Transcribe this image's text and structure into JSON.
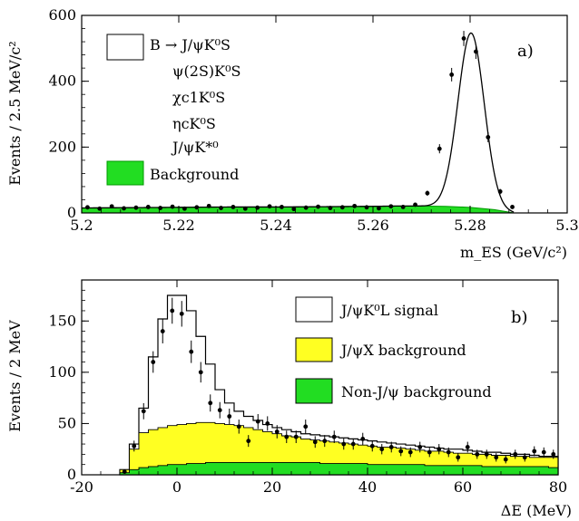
{
  "colors": {
    "background_fill": "#22dd22",
    "background_edge": "#009900",
    "jpsix_fill": "#ffff22",
    "signal_line": "#000000",
    "points": "#000000"
  },
  "chart_data": [
    {
      "type": "area",
      "panel_tag": "a)",
      "xlabel": "m_ES (GeV/c²)",
      "ylabel": "Events / 2.5 MeV/c²",
      "xlim": [
        5.2,
        5.3
      ],
      "ylim": [
        0,
        600
      ],
      "x_ticks": [
        "5.2",
        "5.22",
        "5.24",
        "5.26",
        "5.28",
        "5.3"
      ],
      "y_ticks": [
        "0",
        "200",
        "400",
        "600"
      ],
      "legend_position": "top-left",
      "legend": {
        "signal_lines": [
          "B → J/ψK⁰S",
          "ψ(2S)K⁰S",
          "χc1K⁰S",
          "ηcK⁰S",
          "J/ψK*⁰"
        ],
        "background": "Background"
      },
      "signal_peak": {
        "mean": 5.2802,
        "sigma": 0.0027,
        "height": 530
      },
      "background_curve": {
        "x": [
          5.2,
          5.21,
          5.22,
          5.23,
          5.24,
          5.25,
          5.26,
          5.265,
          5.27,
          5.275,
          5.28,
          5.285,
          5.289
        ],
        "y": [
          15,
          16,
          17,
          18,
          18,
          19,
          20,
          21,
          21,
          20,
          17,
          10,
          0
        ]
      },
      "data_points": {
        "x": [
          5.2012,
          5.2037,
          5.2062,
          5.2087,
          5.2112,
          5.2137,
          5.2162,
          5.2187,
          5.2212,
          5.2237,
          5.2262,
          5.2287,
          5.2312,
          5.2337,
          5.2362,
          5.2387,
          5.2412,
          5.2437,
          5.2462,
          5.2487,
          5.2512,
          5.2537,
          5.2562,
          5.2587,
          5.2612,
          5.2637,
          5.2662,
          5.2687,
          5.2712,
          5.2737,
          5.2762,
          5.2787,
          5.2812,
          5.2837,
          5.2862,
          5.2887
        ],
        "y": [
          17,
          13,
          20,
          14,
          16,
          18,
          15,
          19,
          13,
          17,
          21,
          15,
          18,
          13,
          16,
          20,
          18,
          12,
          16,
          19,
          15,
          17,
          21,
          17,
          14,
          20,
          18,
          25,
          60,
          195,
          420,
          530,
          490,
          230,
          65,
          18
        ]
      }
    },
    {
      "type": "area",
      "panel_tag": "b)",
      "xlabel": "ΔE (MeV)",
      "ylabel": "Events / 2 MeV",
      "xlim": [
        -20,
        80
      ],
      "ylim": [
        0,
        190
      ],
      "x_ticks": [
        "-20",
        "0",
        "20",
        "40",
        "60",
        "80"
      ],
      "y_ticks": [
        "0",
        "50",
        "100",
        "150"
      ],
      "legend_position": "top-right",
      "legend": {
        "signal": "J/ψK⁰L signal",
        "jpsix": "J/ψX background",
        "nonjpsi": "Non-J/ψ background"
      },
      "bins": {
        "start": -12,
        "width": 2
      },
      "total_hist": [
        5,
        30,
        65,
        115,
        152,
        175,
        175,
        160,
        135,
        108,
        83,
        70,
        62,
        57,
        53,
        49,
        46,
        44,
        42,
        40,
        39,
        38,
        37,
        36,
        35,
        34,
        33,
        32,
        31,
        30,
        29,
        28,
        27,
        26,
        25,
        25,
        24,
        23,
        22,
        22,
        21,
        20,
        20,
        19,
        18,
        18
      ],
      "jpsix_hist": [
        5,
        25,
        41,
        44,
        46,
        48,
        49,
        50,
        51,
        51,
        50,
        49,
        48,
        46,
        44,
        42,
        40,
        38,
        37,
        35,
        34,
        33,
        32,
        31,
        30,
        29,
        28,
        27,
        27,
        26,
        25,
        24,
        23,
        23,
        22,
        21,
        21,
        20,
        20,
        19,
        19,
        18,
        18,
        17,
        17,
        17
      ],
      "nonjpsi_hist": [
        2,
        5,
        7,
        8,
        9,
        10,
        10,
        11,
        11,
        12,
        12,
        12,
        12,
        12,
        12,
        12,
        12,
        12,
        12,
        12,
        12,
        11,
        11,
        11,
        11,
        11,
        10,
        10,
        10,
        10,
        10,
        10,
        9,
        9,
        9,
        9,
        9,
        9,
        8,
        8,
        8,
        8,
        8,
        8,
        8,
        7
      ],
      "data_points": {
        "x": [
          -11,
          -9,
          -7,
          -5,
          -3,
          -1,
          1,
          3,
          5,
          7,
          9,
          11,
          13,
          15,
          17,
          19,
          21,
          23,
          25,
          27,
          29,
          31,
          33,
          35,
          37,
          39,
          41,
          43,
          45,
          47,
          49,
          51,
          53,
          55,
          57,
          59,
          61,
          63,
          65,
          67,
          69,
          71,
          73,
          75,
          77,
          79
        ],
        "y": [
          3,
          28,
          62,
          110,
          140,
          160,
          157,
          120,
          100,
          70,
          63,
          57,
          47,
          33,
          52,
          50,
          42,
          37,
          37,
          47,
          32,
          33,
          37,
          30,
          30,
          35,
          28,
          25,
          27,
          23,
          22,
          27,
          22,
          25,
          22,
          17,
          27,
          20,
          20,
          17,
          15,
          20,
          17,
          23,
          22,
          20
        ]
      }
    }
  ]
}
